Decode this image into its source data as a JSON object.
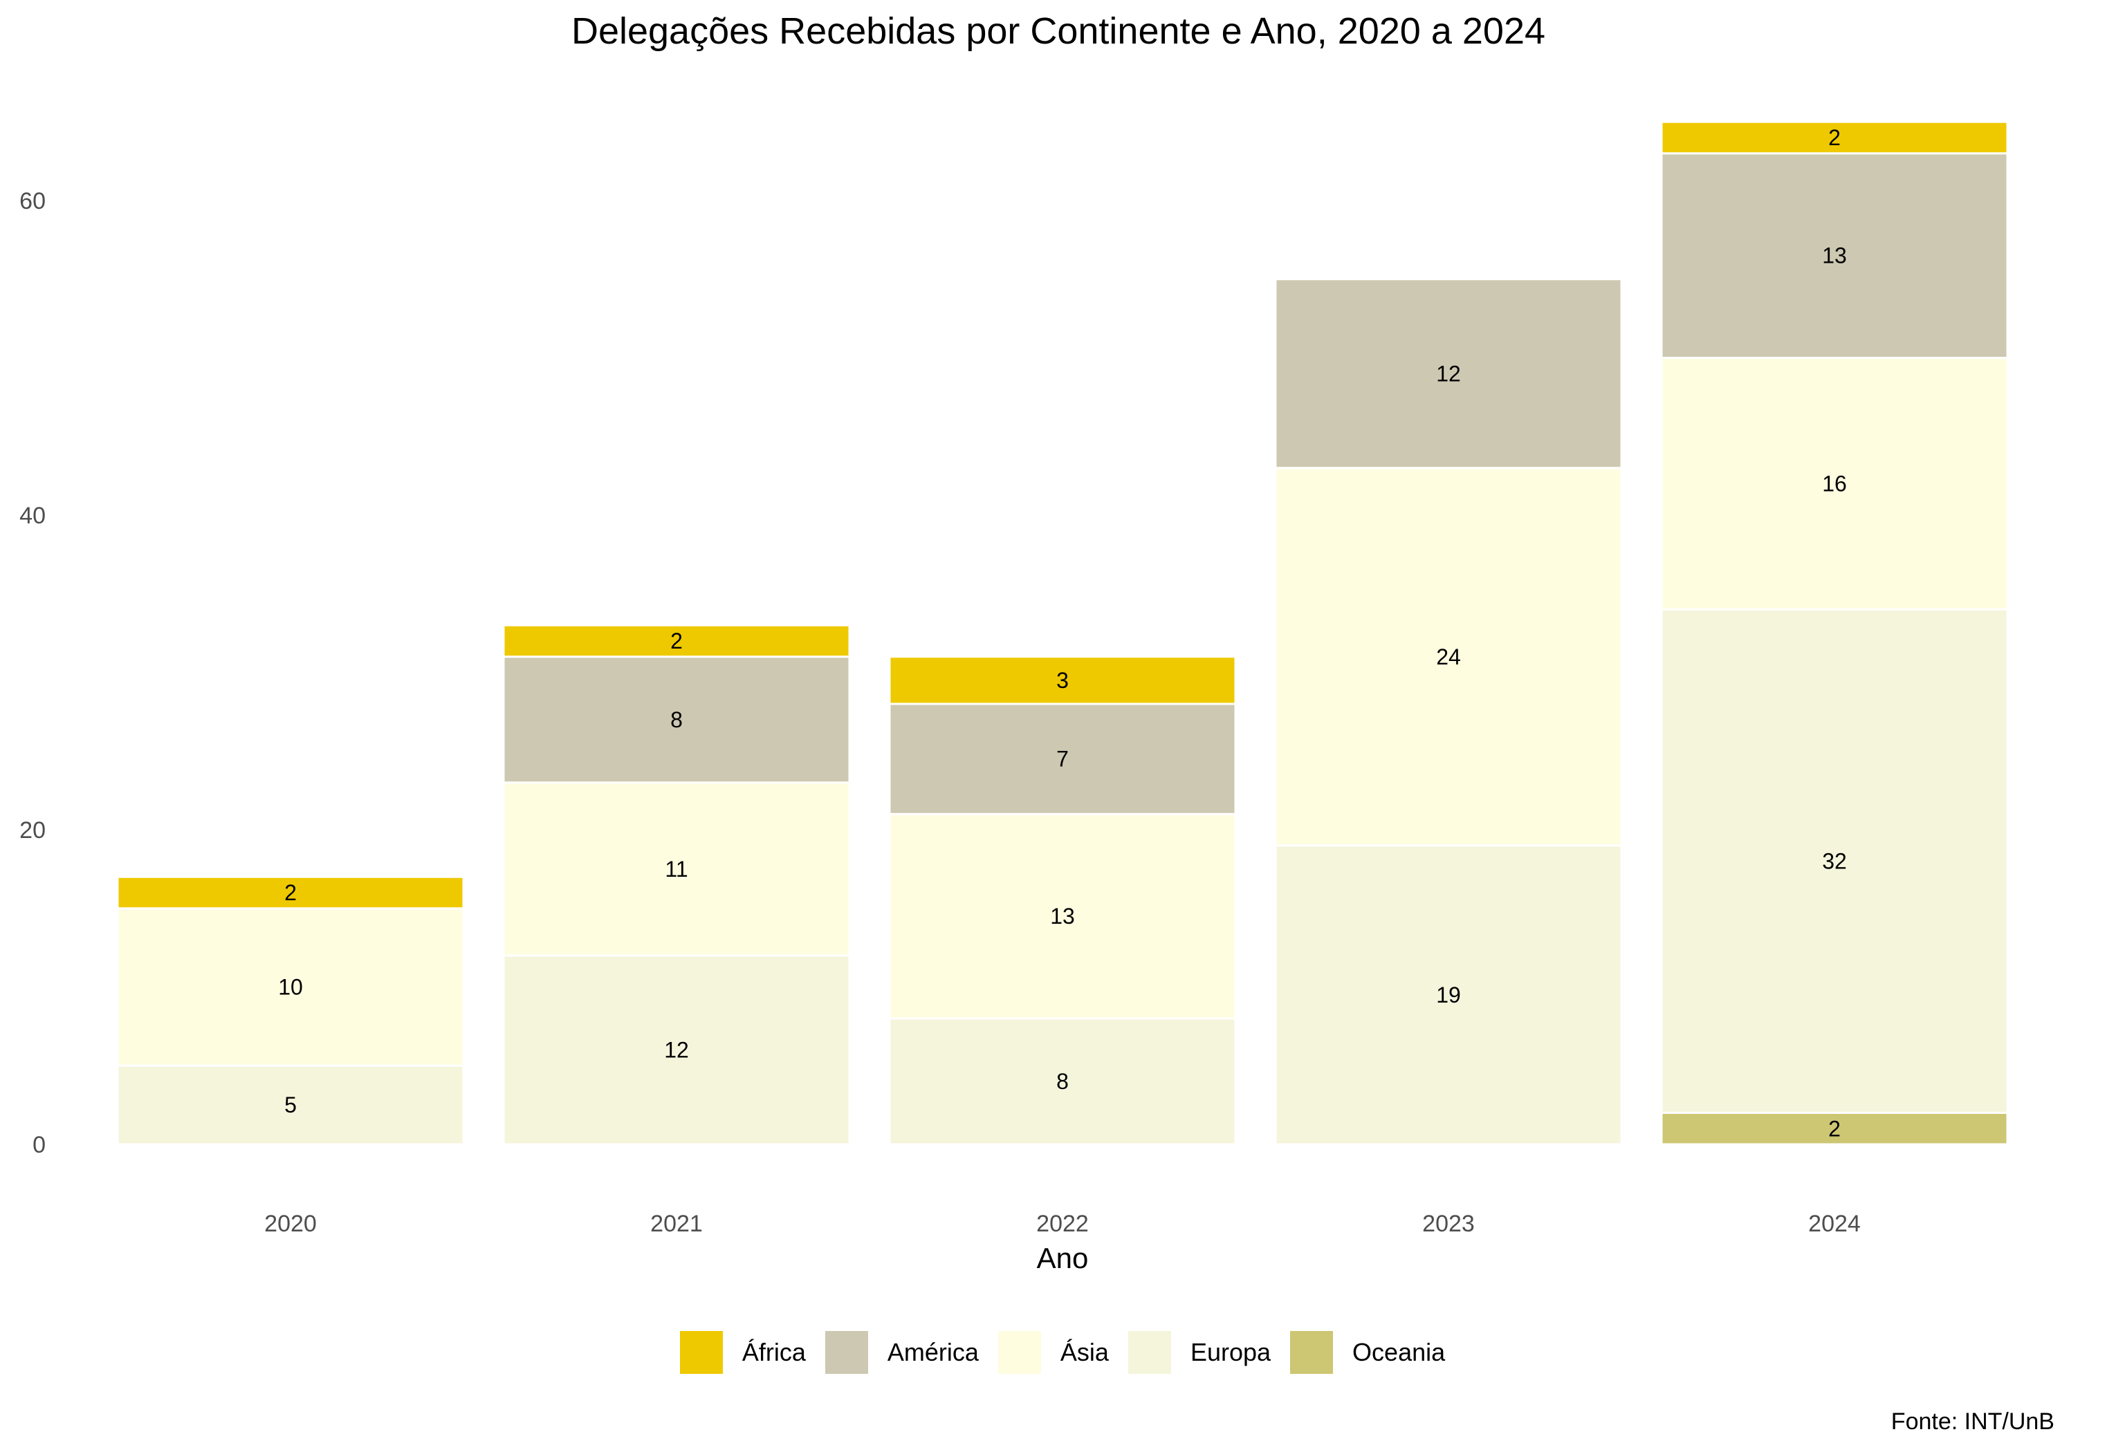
{
  "chart_data": {
    "type": "bar",
    "stacked": true,
    "title": "Delegações Recebidas por Continente e Ano, 2020 a 2024",
    "xlabel": "Ano",
    "ylabel": "",
    "caption": "Fonte: INT/UnB",
    "categories": [
      "2020",
      "2021",
      "2022",
      "2023",
      "2024"
    ],
    "ylim": [
      0,
      65
    ],
    "yticks": [
      0,
      20,
      40,
      60
    ],
    "grid": false,
    "legend_position": "bottom",
    "stack_order_bottom_to_top": [
      "Oceania",
      "Europa",
      "Ásia",
      "América",
      "África"
    ],
    "series": [
      {
        "name": "África",
        "color": "#EEC900",
        "values": [
          2,
          2,
          3,
          0,
          2
        ]
      },
      {
        "name": "América",
        "color": "#CDC8B1",
        "values": [
          0,
          8,
          7,
          12,
          13
        ]
      },
      {
        "name": "Ásia",
        "color": "#FFFDE0",
        "values": [
          10,
          11,
          13,
          24,
          16
        ]
      },
      {
        "name": "Europa",
        "color": "#F5F5DC",
        "values": [
          5,
          12,
          8,
          19,
          32
        ]
      },
      {
        "name": "Oceania",
        "color": "#CDC673",
        "values": [
          0,
          0,
          0,
          0,
          2
        ]
      }
    ]
  }
}
